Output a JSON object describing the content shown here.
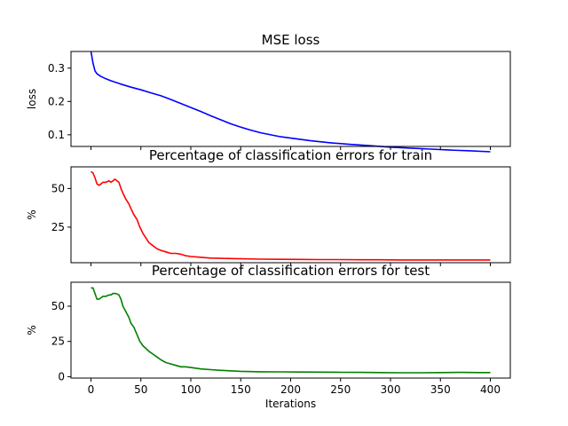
{
  "chart_data": [
    {
      "type": "line",
      "title": "MSE loss",
      "xlabel": "",
      "ylabel": "loss",
      "xlim": [
        -20,
        420
      ],
      "ylim": [
        0.065,
        0.35
      ],
      "yticks": [
        0.1,
        0.2,
        0.3
      ],
      "ytick_labels": [
        "0.1",
        "0.2",
        "0.3"
      ],
      "show_xticklabels": false,
      "grid": false,
      "series": [
        {
          "color": "#0000ff",
          "x": [
            0,
            2,
            4,
            6,
            10,
            15,
            20,
            30,
            40,
            50,
            60,
            70,
            80,
            90,
            100,
            110,
            120,
            130,
            140,
            150,
            160,
            170,
            180,
            190,
            200,
            220,
            240,
            260,
            280,
            300,
            320,
            340,
            360,
            380,
            400
          ],
          "y": [
            0.35,
            0.315,
            0.292,
            0.283,
            0.275,
            0.268,
            0.262,
            0.252,
            0.243,
            0.235,
            0.226,
            0.217,
            0.206,
            0.194,
            0.182,
            0.17,
            0.157,
            0.145,
            0.133,
            0.123,
            0.114,
            0.106,
            0.1,
            0.094,
            0.09,
            0.082,
            0.076,
            0.071,
            0.067,
            0.063,
            0.06,
            0.057,
            0.054,
            0.052,
            0.049
          ]
        }
      ]
    },
    {
      "type": "line",
      "title": "Percentage of classification errors for train",
      "xlabel": "",
      "ylabel": "%",
      "xlim": [
        -20,
        420
      ],
      "ylim": [
        2,
        64
      ],
      "yticks": [
        25,
        50
      ],
      "ytick_labels": [
        "25",
        "50"
      ],
      "show_xticklabels": false,
      "grid": false,
      "series": [
        {
          "color": "#ff0000",
          "x": [
            0,
            2,
            4,
            6,
            8,
            10,
            12,
            15,
            18,
            20,
            22,
            24,
            26,
            28,
            30,
            32,
            35,
            38,
            40,
            43,
            46,
            49,
            52,
            55,
            58,
            62,
            66,
            70,
            75,
            80,
            85,
            90,
            95,
            100,
            110,
            120,
            130,
            150,
            170,
            190,
            210,
            230,
            250,
            270,
            290,
            310,
            330,
            350,
            370,
            390,
            400
          ],
          "y": [
            61,
            60,
            57,
            53,
            52,
            53,
            54,
            54,
            55,
            54,
            55,
            56,
            55,
            54,
            50,
            47,
            43,
            40,
            37,
            33,
            30,
            25,
            21,
            18,
            15,
            13,
            11,
            10,
            9,
            8,
            8,
            7.5,
            6.5,
            6,
            5.5,
            5,
            4.8,
            4.5,
            4.3,
            4.2,
            4.1,
            4.0,
            4.0,
            3.9,
            3.9,
            3.8,
            3.8,
            3.8,
            3.8,
            3.8,
            3.8
          ]
        }
      ]
    },
    {
      "type": "line",
      "title": "Percentage of classification errors for test",
      "xlabel": "Iterations",
      "ylabel": "%",
      "xlim": [
        -20,
        420
      ],
      "ylim": [
        -1,
        67
      ],
      "yticks": [
        0,
        25,
        50
      ],
      "ytick_labels": [
        "0",
        "25",
        "50"
      ],
      "xticks": [
        0,
        50,
        100,
        150,
        200,
        250,
        300,
        350,
        400
      ],
      "xtick_labels": [
        "0",
        "50",
        "100",
        "150",
        "200",
        "250",
        "300",
        "350",
        "400"
      ],
      "show_xticklabels": true,
      "grid": false,
      "series": [
        {
          "color": "#008000",
          "x": [
            0,
            2,
            4,
            6,
            8,
            10,
            12,
            15,
            18,
            20,
            22,
            25,
            28,
            30,
            32,
            35,
            38,
            40,
            43,
            46,
            49,
            52,
            55,
            58,
            62,
            66,
            70,
            75,
            80,
            85,
            90,
            95,
            100,
            110,
            120,
            130,
            150,
            170,
            190,
            210,
            230,
            250,
            270,
            290,
            310,
            330,
            350,
            370,
            390,
            400
          ],
          "y": [
            63,
            63,
            59,
            55,
            55,
            56,
            57,
            57,
            58,
            58,
            59,
            59,
            58,
            55,
            50,
            46,
            42,
            38,
            35,
            30,
            25,
            22,
            20,
            18,
            16,
            14,
            12,
            10,
            9,
            8,
            7,
            7,
            6.5,
            5.5,
            5,
            4.5,
            3.8,
            3.5,
            3.4,
            3.3,
            3.2,
            3.1,
            3.0,
            2.9,
            2.8,
            2.8,
            2.9,
            3.0,
            2.9,
            2.9
          ]
        }
      ]
    }
  ]
}
